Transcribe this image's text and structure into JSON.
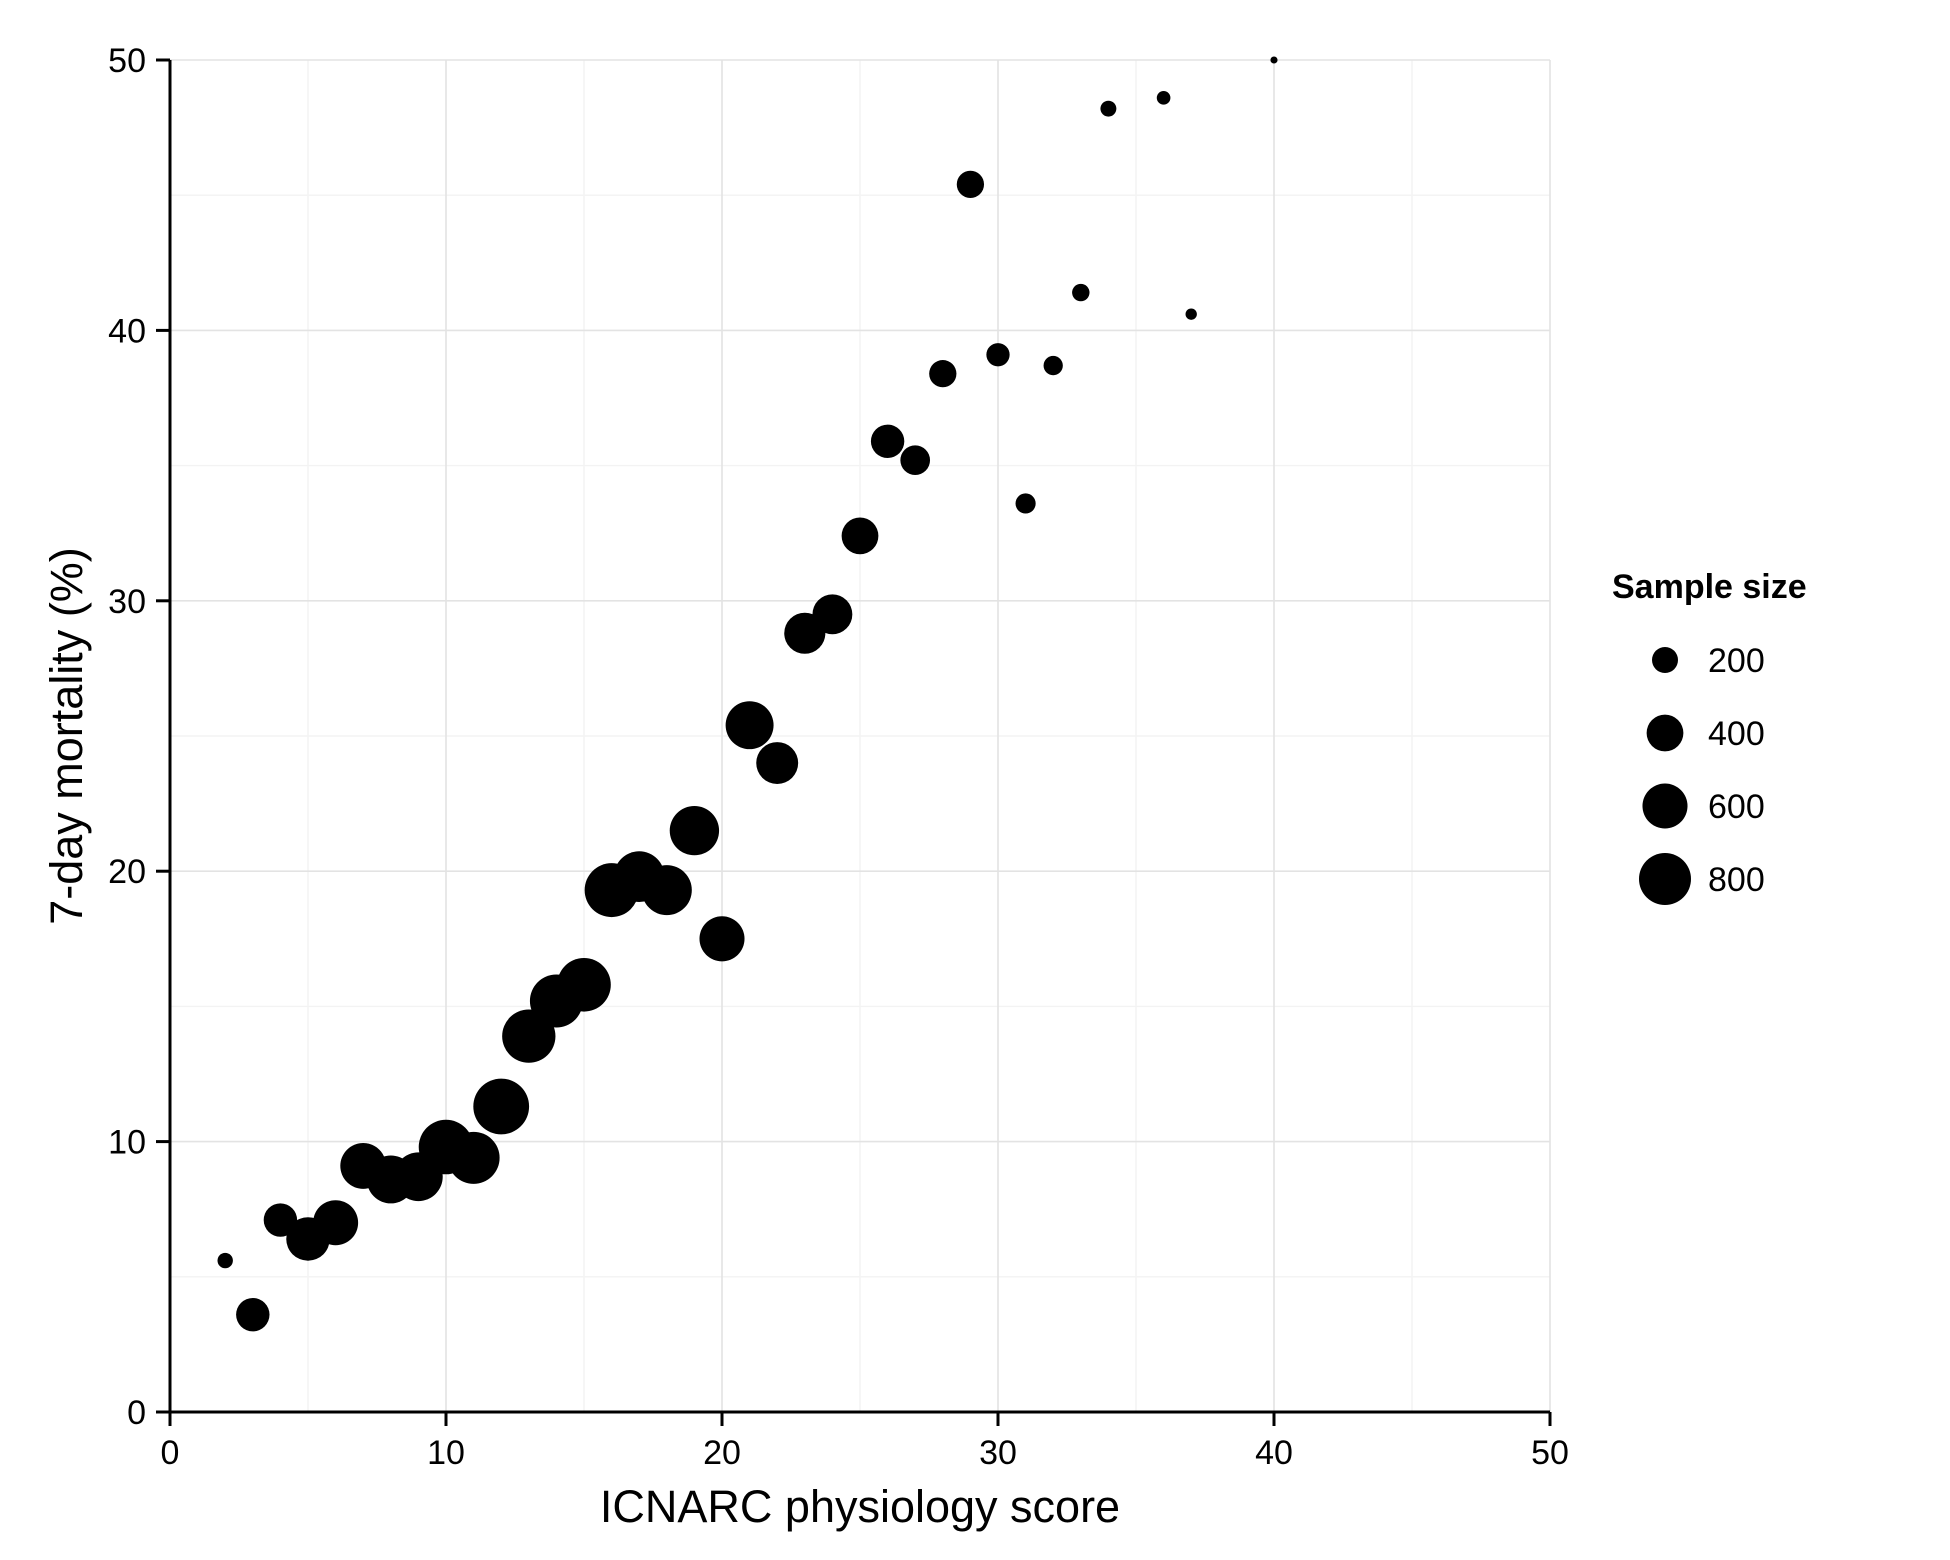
{
  "chart_data": {
    "type": "scatter",
    "title": "",
    "xlabel": "ICNARC physiology score",
    "ylabel": "7-day mortality (%)",
    "xlim": [
      0,
      50
    ],
    "ylim": [
      0,
      50
    ],
    "x_ticks": [
      "0",
      "10",
      "20",
      "30",
      "40",
      "50"
    ],
    "y_ticks": [
      "0",
      "10",
      "20",
      "30",
      "40",
      "50"
    ],
    "grid": true,
    "size_legend": {
      "title": "Sample size",
      "placement": "right",
      "entries": [
        {
          "label": "200",
          "value": 200
        },
        {
          "label": "400",
          "value": 400
        },
        {
          "label": "600",
          "value": 600
        },
        {
          "label": "800",
          "value": 800
        }
      ]
    },
    "points": [
      {
        "x": 2,
        "y": 5.6,
        "size": 70
      },
      {
        "x": 3,
        "y": 3.6,
        "size": 330
      },
      {
        "x": 4,
        "y": 7.1,
        "size": 330
      },
      {
        "x": 5,
        "y": 6.4,
        "size": 560
      },
      {
        "x": 6,
        "y": 7.0,
        "size": 600
      },
      {
        "x": 7,
        "y": 9.1,
        "size": 620
      },
      {
        "x": 8,
        "y": 8.6,
        "size": 680
      },
      {
        "x": 9,
        "y": 8.7,
        "size": 700
      },
      {
        "x": 10,
        "y": 9.8,
        "size": 880
      },
      {
        "x": 11,
        "y": 9.4,
        "size": 800
      },
      {
        "x": 12,
        "y": 11.3,
        "size": 920
      },
      {
        "x": 13,
        "y": 13.9,
        "size": 840
      },
      {
        "x": 14,
        "y": 15.2,
        "size": 830
      },
      {
        "x": 15,
        "y": 15.8,
        "size": 850
      },
      {
        "x": 16,
        "y": 19.3,
        "size": 860
      },
      {
        "x": 17,
        "y": 19.8,
        "size": 760
      },
      {
        "x": 18,
        "y": 19.3,
        "size": 740
      },
      {
        "x": 19,
        "y": 21.5,
        "size": 720
      },
      {
        "x": 20,
        "y": 17.5,
        "size": 600
      },
      {
        "x": 21,
        "y": 25.4,
        "size": 680
      },
      {
        "x": 22,
        "y": 24.0,
        "size": 520
      },
      {
        "x": 23,
        "y": 28.8,
        "size": 500
      },
      {
        "x": 24,
        "y": 29.5,
        "size": 470
      },
      {
        "x": 25,
        "y": 32.4,
        "size": 400
      },
      {
        "x": 26,
        "y": 35.9,
        "size": 330
      },
      {
        "x": 27,
        "y": 35.2,
        "size": 260
      },
      {
        "x": 28,
        "y": 38.4,
        "size": 220
      },
      {
        "x": 29,
        "y": 45.4,
        "size": 220
      },
      {
        "x": 30,
        "y": 39.1,
        "size": 160
      },
      {
        "x": 31,
        "y": 33.6,
        "size": 120
      },
      {
        "x": 32,
        "y": 38.7,
        "size": 110
      },
      {
        "x": 33,
        "y": 41.4,
        "size": 90
      },
      {
        "x": 34,
        "y": 48.2,
        "size": 75
      },
      {
        "x": 36,
        "y": 48.6,
        "size": 55
      },
      {
        "x": 37,
        "y": 40.6,
        "size": 38
      },
      {
        "x": 40,
        "y": 50.0,
        "size": 15
      }
    ]
  }
}
